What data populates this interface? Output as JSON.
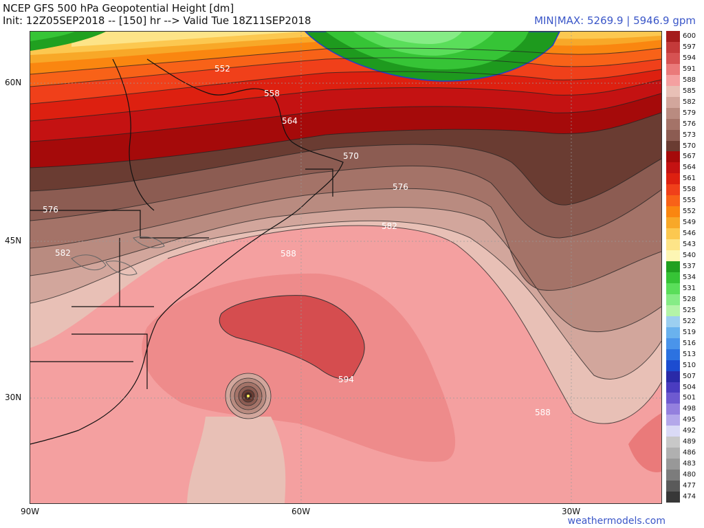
{
  "header": {
    "title": "NCEP GFS 500 hPa Geopotential Height [dm]",
    "init": "Init: 12Z05SEP2018 -- [150] hr --> Valid Tue 18Z11SEP2018",
    "minmax": "MIN|MAX: 5269.9 | 5946.9 gpm"
  },
  "axes": {
    "lat": [
      "60N",
      "45N",
      "30N"
    ],
    "lon": [
      "90W",
      "60W",
      "30W"
    ]
  },
  "credit": "weathermodels.com",
  "map": {
    "contour_labels": [
      "552",
      "558",
      "564",
      "570",
      "576",
      "576",
      "582",
      "582",
      "588",
      "588",
      "594",
      "588"
    ],
    "colors": {
      "greenland": "#59e65a",
      "greenland_dark": "#1e9a1e",
      "coast": "#1e3fc8",
      "land_line": "#111111",
      "ridge": "#d54d4f"
    }
  },
  "legend": {
    "entries": [
      {
        "label": "600",
        "color": "#a51c1c"
      },
      {
        "label": "597",
        "color": "#c43a3a"
      },
      {
        "label": "594",
        "color": "#d65252"
      },
      {
        "label": "591",
        "color": "#ea7a7a"
      },
      {
        "label": "588",
        "color": "#f4a0a0"
      },
      {
        "label": "585",
        "color": "#e8c0b6"
      },
      {
        "label": "582",
        "color": "#d2a69c"
      },
      {
        "label": "579",
        "color": "#b98b80"
      },
      {
        "label": "576",
        "color": "#a47368"
      },
      {
        "label": "573",
        "color": "#8c5c52"
      },
      {
        "label": "570",
        "color": "#6a3c32"
      },
      {
        "label": "567",
        "color": "#a50a0a"
      },
      {
        "label": "564",
        "color": "#c41212"
      },
      {
        "label": "561",
        "color": "#dd2010"
      },
      {
        "label": "558",
        "color": "#f0401a"
      },
      {
        "label": "555",
        "color": "#f86218"
      },
      {
        "label": "552",
        "color": "#fa8610"
      },
      {
        "label": "549",
        "color": "#f8a828"
      },
      {
        "label": "546",
        "color": "#fcc850"
      },
      {
        "label": "543",
        "color": "#fde488"
      },
      {
        "label": "540",
        "color": "#fdf6b4"
      },
      {
        "label": "537",
        "color": "#20a020"
      },
      {
        "label": "534",
        "color": "#36c436"
      },
      {
        "label": "531",
        "color": "#5ade5a"
      },
      {
        "label": "528",
        "color": "#86ec86"
      },
      {
        "label": "525",
        "color": "#b4f4a8"
      },
      {
        "label": "522",
        "color": "#9ccff0"
      },
      {
        "label": "519",
        "color": "#6ab2ee"
      },
      {
        "label": "516",
        "color": "#4a94ea"
      },
      {
        "label": "513",
        "color": "#2c72e0"
      },
      {
        "label": "510",
        "color": "#1c4cd0"
      },
      {
        "label": "507",
        "color": "#2a2aa8"
      },
      {
        "label": "504",
        "color": "#4a3cc0"
      },
      {
        "label": "501",
        "color": "#6e5ad0"
      },
      {
        "label": "498",
        "color": "#9480de"
      },
      {
        "label": "495",
        "color": "#b4a8ea"
      },
      {
        "label": "492",
        "color": "#dadaf6"
      },
      {
        "label": "489",
        "color": "#c8c8c8"
      },
      {
        "label": "486",
        "color": "#b0b0b0"
      },
      {
        "label": "483",
        "color": "#989898"
      },
      {
        "label": "480",
        "color": "#7c7c7c"
      },
      {
        "label": "477",
        "color": "#5a5a5a"
      },
      {
        "label": "474",
        "color": "#383838"
      }
    ]
  }
}
